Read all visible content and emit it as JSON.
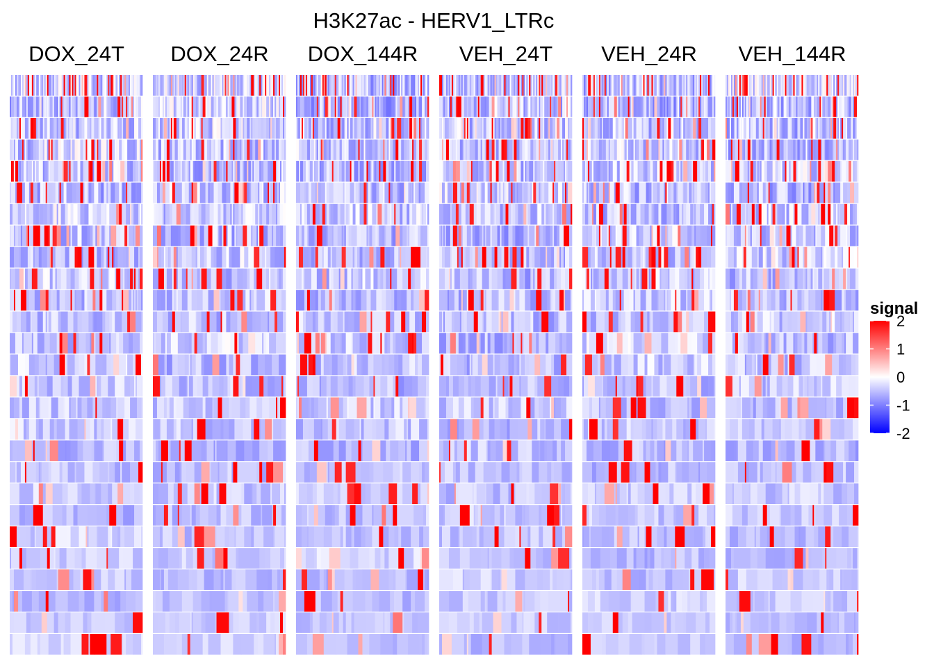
{
  "chart_data": {
    "type": "heatmap",
    "title": "H3K27ac - HERV1_LTRc",
    "panels": [
      "DOX_24T",
      "DOX_24R",
      "DOX_144R",
      "VEH_24T",
      "VEH_24R",
      "VEH_144R"
    ],
    "rows_per_panel": 27,
    "columns_per_panel": 96,
    "legend": {
      "title": "signal",
      "ticks": [
        2,
        1,
        0,
        -1,
        -2
      ],
      "tick_labels": [
        "2",
        "1",
        "0",
        "-1",
        "-2"
      ],
      "limits": [
        -2,
        2
      ],
      "placement": "right"
    },
    "colorscale": {
      "low": "#0000ff",
      "mid": "#ffffff",
      "high": "#ff0000"
    },
    "values_note": "individual cell signal values not printed; approximated pattern in [-2, 2], mostly around -0.5 with sparse red peaks"
  }
}
